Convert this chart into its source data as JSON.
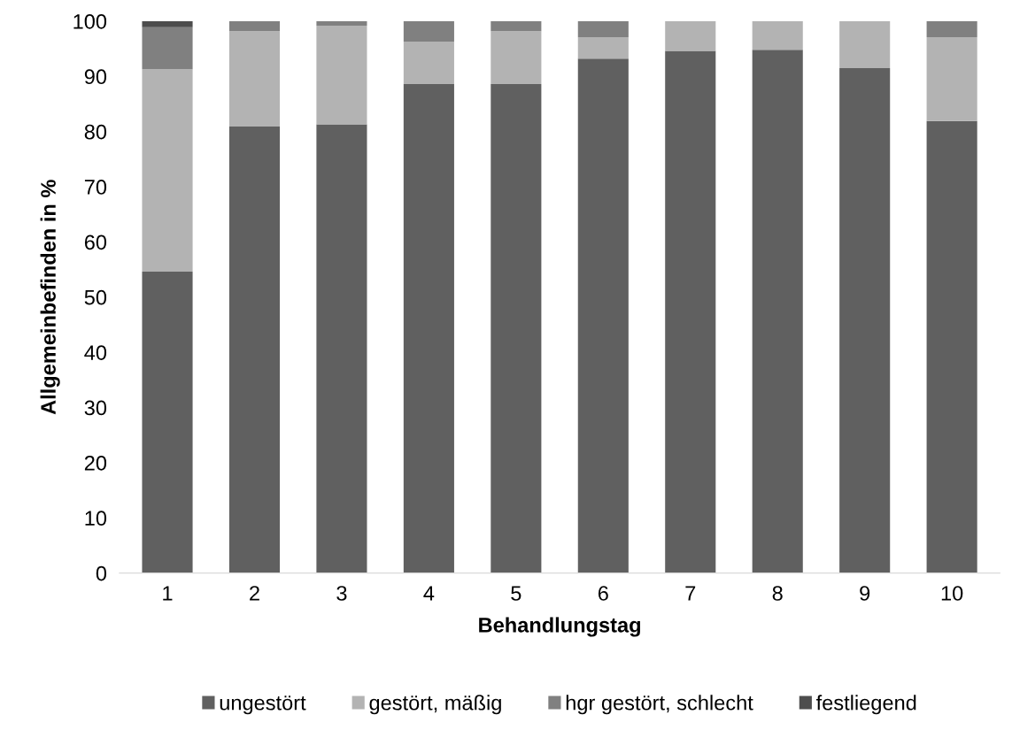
{
  "chart_data": {
    "type": "bar",
    "stacked": true,
    "xlabel": "Behandlungstag",
    "ylabel": "Allgemeinbefinden in %",
    "categories": [
      "1",
      "2",
      "3",
      "4",
      "5",
      "6",
      "7",
      "8",
      "9",
      "10"
    ],
    "series": [
      {
        "name": "ungestört",
        "color": "#606060",
        "values": [
          54.6,
          80.9,
          81.3,
          88.6,
          88.6,
          93.2,
          94.6,
          94.8,
          91.5,
          81.9
        ]
      },
      {
        "name": "gestört, mäßig",
        "color": "#b3b3b3",
        "values": [
          36.7,
          17.3,
          17.9,
          7.7,
          9.6,
          3.9,
          5.4,
          5.2,
          8.5,
          15.2
        ]
      },
      {
        "name": "hgr gestört, schlecht",
        "color": "#808080",
        "values": [
          7.6,
          1.8,
          0.8,
          3.7,
          1.8,
          2.9,
          0,
          0,
          0,
          2.9
        ]
      },
      {
        "name": "festliegend",
        "color": "#4d4d4d",
        "values": [
          1.1,
          0,
          0,
          0,
          0,
          0,
          0,
          0,
          0,
          0
        ]
      }
    ],
    "ylim": [
      0,
      100
    ],
    "yticks": [
      0,
      10,
      20,
      30,
      40,
      50,
      60,
      70,
      80,
      90,
      100
    ],
    "grid": false,
    "legend": "bottom"
  }
}
